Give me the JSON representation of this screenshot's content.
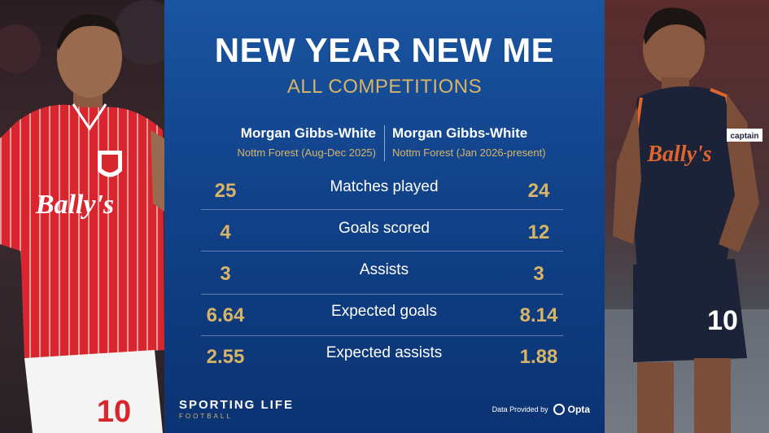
{
  "header": {
    "title": "NEW YEAR NEW ME",
    "subtitle": "ALL COMPETITIONS"
  },
  "columns": {
    "left": {
      "name": "Morgan Gibbs-White",
      "period": "Nottm Forest (Aug-Dec 2025)"
    },
    "right": {
      "name": "Morgan Gibbs-White",
      "period": "Nottm Forest (Jan 2026-present)"
    }
  },
  "stats": [
    {
      "label": "Matches played",
      "left": "25",
      "right": "24"
    },
    {
      "label": "Goals scored",
      "left": "4",
      "right": "12"
    },
    {
      "label": "Assists",
      "left": "3",
      "right": "3"
    },
    {
      "label": "Expected goals",
      "left": "6.64",
      "right": "8.14"
    },
    {
      "label": "Expected assists",
      "left": "2.55",
      "right": "1.88"
    }
  ],
  "footer": {
    "brand": "SPORTING LIFE",
    "brand_sub": "FOOTBALL",
    "provider_text": "Data Provided by",
    "provider_brand": "Opta"
  },
  "photos": {
    "left": {
      "shirt_text": "Bally's",
      "shirt_number": "10"
    },
    "right": {
      "shirt_text": "Bally's",
      "armband": "captain",
      "shirt_number": "10"
    }
  },
  "colors": {
    "panel_top": "#1a54a0",
    "panel_bottom": "#0b3373",
    "accent_gold": "#d8b566",
    "home_kit_red": "#d8262e",
    "away_kit_navy": "#1c2238"
  }
}
